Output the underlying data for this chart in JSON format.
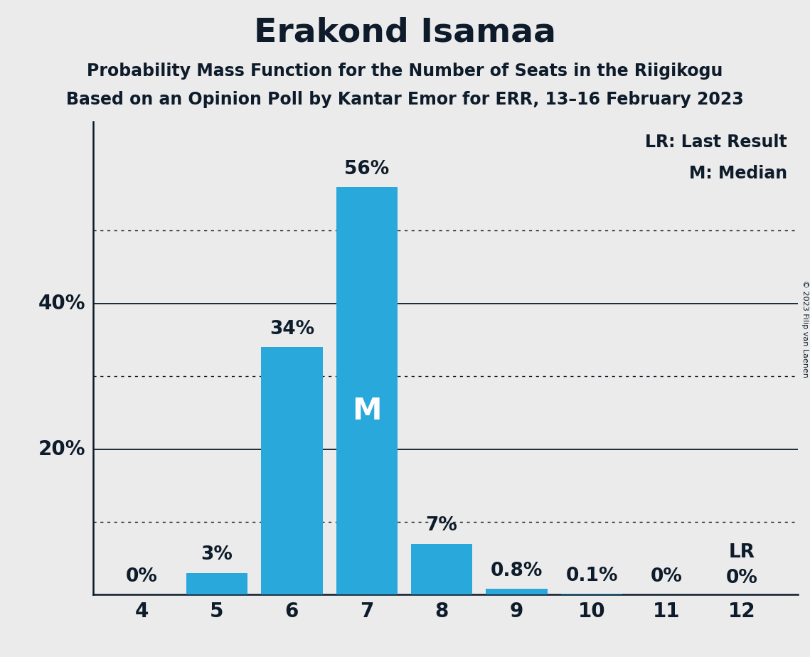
{
  "title": "Erakond Isamaa",
  "subtitle1": "Probability Mass Function for the Number of Seats in the Riigikogu",
  "subtitle2": "Based on an Opinion Poll by Kantar Emor for ERR, 13–16 February 2023",
  "copyright": "© 2023 Filip van Laenen",
  "categories": [
    4,
    5,
    6,
    7,
    8,
    9,
    10,
    11,
    12
  ],
  "values": [
    0.0,
    3.0,
    34.0,
    56.0,
    7.0,
    0.8,
    0.1,
    0.0,
    0.0
  ],
  "bar_labels": [
    "0%",
    "3%",
    "34%",
    "56%",
    "7%",
    "0.8%",
    "0.1%",
    "0%",
    "0%"
  ],
  "bar_color": "#29a8dc",
  "median_bar": 7,
  "lr_bar": 12,
  "median_label": "M",
  "lr_label": "LR",
  "legend_lr": "LR: Last Result",
  "legend_m": "M: Median",
  "ylim": [
    0,
    65
  ],
  "background_color": "#ebebeb",
  "title_color": "#0d1b2a",
  "axis_color": "#0d1b2a",
  "solid_gridlines": [
    20,
    40
  ],
  "dotted_gridlines": [
    10,
    30,
    50
  ],
  "title_fontsize": 34,
  "subtitle_fontsize": 17,
  "tick_fontsize": 20,
  "legend_fontsize": 17,
  "bar_label_fontsize": 19,
  "m_label_fontsize": 30,
  "copyright_fontsize": 8
}
